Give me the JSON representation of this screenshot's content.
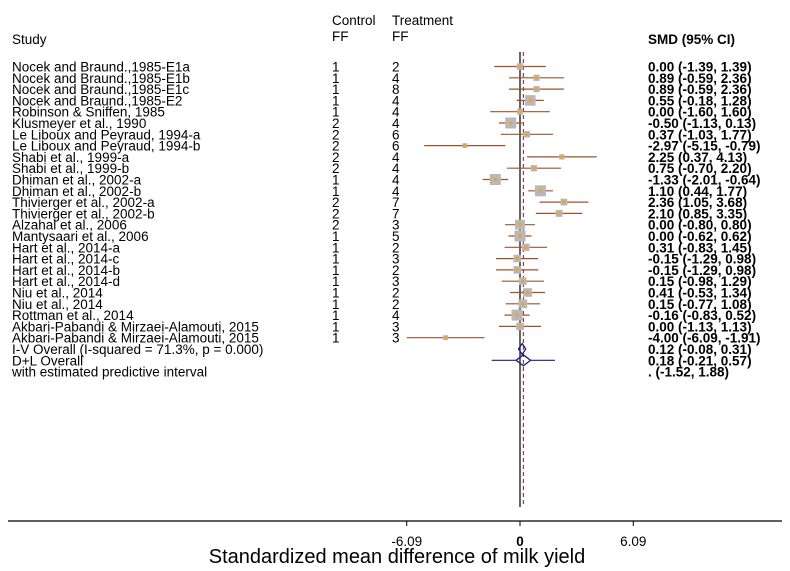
{
  "chart_data": {
    "type": "forest",
    "title": "",
    "xlabel": "Standardized mean difference of milk yield",
    "ylabel": "",
    "xlim": [
      -6.09,
      6.09
    ],
    "x_ticks": [
      -6.09,
      0,
      6.09
    ],
    "x_tick_labels": [
      "-6.09",
      "0",
      "6.09"
    ],
    "reference_line": 0,
    "overall_line": 0.18,
    "grid": false,
    "columns": {
      "study_header": "Study",
      "control_header_top": "Control",
      "control_header": "FF",
      "treatment_header_top": "Treatment",
      "treatment_header": "FF",
      "ci_header": "SMD (95% CI)"
    },
    "studies": [
      {
        "label": "Nocek and Braund.,1985-E1a",
        "control": "1",
        "treatment": "2",
        "est": 0.0,
        "lo": -1.39,
        "hi": 1.39,
        "ci_text": "0.00 (-1.39, 1.39)"
      },
      {
        "label": "Nocek and Braund.,1985-E1b",
        "control": "1",
        "treatment": "4",
        "est": 0.89,
        "lo": -0.59,
        "hi": 2.36,
        "ci_text": "0.89 (-0.59, 2.36)"
      },
      {
        "label": "Nocek and Braund.,1985-E1c",
        "control": "1",
        "treatment": "8",
        "est": 0.89,
        "lo": -0.59,
        "hi": 2.36,
        "ci_text": "0.89 (-0.59, 2.36)"
      },
      {
        "label": "Nocek and Braund.,1985-E2",
        "control": "1",
        "treatment": "4",
        "est": 0.55,
        "lo": -0.18,
        "hi": 1.28,
        "ci_text": "0.55 (-0.18, 1.28)"
      },
      {
        "label": "Robinson & Sniffen, 1985",
        "control": "1",
        "treatment": "4",
        "est": 0.0,
        "lo": -1.6,
        "hi": 1.6,
        "ci_text": "0.00 (-1.60, 1.60)"
      },
      {
        "label": "Klusmeyer et al., 1990",
        "control": "2",
        "treatment": "4",
        "est": -0.5,
        "lo": -1.13,
        "hi": 0.13,
        "ci_text": "-0.50 (-1.13, 0.13)"
      },
      {
        "label": "Le Liboux and Peyraud, 1994-a",
        "control": "2",
        "treatment": "6",
        "est": 0.37,
        "lo": -1.03,
        "hi": 1.77,
        "ci_text": "0.37 (-1.03, 1.77)"
      },
      {
        "label": "Le Liboux and Peyraud, 1994-b",
        "control": "2",
        "treatment": "6",
        "est": -2.97,
        "lo": -5.15,
        "hi": -0.79,
        "ci_text": "-2.97 (-5.15, -0.79)"
      },
      {
        "label": "Shabi et al., 1999-a",
        "control": "2",
        "treatment": "4",
        "est": 2.25,
        "lo": 0.37,
        "hi": 4.13,
        "ci_text": "2.25 (0.37, 4.13)"
      },
      {
        "label": "Shabi et al., 1999-b",
        "control": "2",
        "treatment": "4",
        "est": 0.75,
        "lo": -0.7,
        "hi": 2.2,
        "ci_text": "0.75 (-0.70, 2.20)"
      },
      {
        "label": "Dhiman et al., 2002-a",
        "control": "1",
        "treatment": "4",
        "est": -1.33,
        "lo": -2.01,
        "hi": -0.64,
        "ci_text": "-1.33 (-2.01, -0.64)"
      },
      {
        "label": "Dhiman et al., 2002-b",
        "control": "1",
        "treatment": "4",
        "est": 1.1,
        "lo": 0.44,
        "hi": 1.77,
        "ci_text": "1.10 (0.44, 1.77)"
      },
      {
        "label": "Thivierger et al., 2002-a",
        "control": "2",
        "treatment": "7",
        "est": 2.36,
        "lo": 1.05,
        "hi": 3.68,
        "ci_text": "2.36 (1.05, 3.68)"
      },
      {
        "label": "Thivierger et al., 2002-b",
        "control": "2",
        "treatment": "7",
        "est": 2.1,
        "lo": 0.85,
        "hi": 3.35,
        "ci_text": "2.10 (0.85, 3.35)"
      },
      {
        "label": "Alzahal et al., 2006",
        "control": "2",
        "treatment": "3",
        "est": 0.0,
        "lo": -0.8,
        "hi": 0.8,
        "ci_text": "0.00 (-0.80, 0.80)"
      },
      {
        "label": "Mantysaari et al., 2006",
        "control": "1",
        "treatment": "5",
        "est": 0.0,
        "lo": -0.62,
        "hi": 0.62,
        "ci_text": "0.00 (-0.62, 0.62)"
      },
      {
        "label": "Hart et al., 2014-a",
        "control": "1",
        "treatment": "2",
        "est": 0.31,
        "lo": -0.83,
        "hi": 1.45,
        "ci_text": "0.31 (-0.83, 1.45)"
      },
      {
        "label": "Hart et al., 2014-c",
        "control": "1",
        "treatment": "3",
        "est": -0.15,
        "lo": -1.29,
        "hi": 0.98,
        "ci_text": "-0.15 (-1.29, 0.98)"
      },
      {
        "label": "Hart et al., 2014-b",
        "control": "1",
        "treatment": "2",
        "est": -0.15,
        "lo": -1.29,
        "hi": 0.98,
        "ci_text": "-0.15 (-1.29, 0.98)"
      },
      {
        "label": "Hart et al., 2014-d",
        "control": "1",
        "treatment": "3",
        "est": 0.15,
        "lo": -0.98,
        "hi": 1.29,
        "ci_text": "0.15 (-0.98, 1.29)"
      },
      {
        "label": "Niu et al., 2014",
        "control": "1",
        "treatment": "2",
        "est": 0.41,
        "lo": -0.53,
        "hi": 1.34,
        "ci_text": "0.41 (-0.53, 1.34)"
      },
      {
        "label": "Niu et al., 2014",
        "control": "1",
        "treatment": "2",
        "est": 0.15,
        "lo": -0.77,
        "hi": 1.08,
        "ci_text": "0.15 (-0.77, 1.08)"
      },
      {
        "label": "Rottman et al., 2014",
        "control": "1",
        "treatment": "4",
        "est": -0.16,
        "lo": -0.83,
        "hi": 0.52,
        "ci_text": "-0.16 (-0.83, 0.52)"
      },
      {
        "label": "Akbari-Pabandi & Mirzaei-Alamouti, 2015",
        "control": "1",
        "treatment": "3",
        "est": 0.0,
        "lo": -1.13,
        "hi": 1.13,
        "ci_text": "0.00 (-1.13, 1.13)"
      },
      {
        "label": "Akbari-Pabandi & Mirzaei-Alamouti, 2015",
        "control": "1",
        "treatment": "3",
        "est": -4.0,
        "lo": -6.09,
        "hi": -1.91,
        "ci_text": "-4.00 (-6.09, -1.91)"
      }
    ],
    "summaries": [
      {
        "label": "I-V Overall  (I-squared = 71.3%, p = 0.000)",
        "est": 0.12,
        "lo": -0.08,
        "hi": 0.31,
        "ci_text": "0.12 (-0.08, 0.31)"
      },
      {
        "label": "D+L Overall",
        "est": 0.18,
        "lo": -0.21,
        "hi": 0.57,
        "ci_text": "0.18 (-0.21, 0.57)"
      },
      {
        "label": "with estimated predictive interval",
        "lo": -1.52,
        "hi": 1.88,
        "ci_text": ".        (-1.52, 1.88)"
      }
    ],
    "colors": {
      "ci_line": "#a0522d",
      "point": "#e8a33a",
      "weight_box": "#b8b8b8",
      "summary": "#1a237e",
      "reference_line": "#000000",
      "overall_line": "#8b1a1a"
    }
  }
}
